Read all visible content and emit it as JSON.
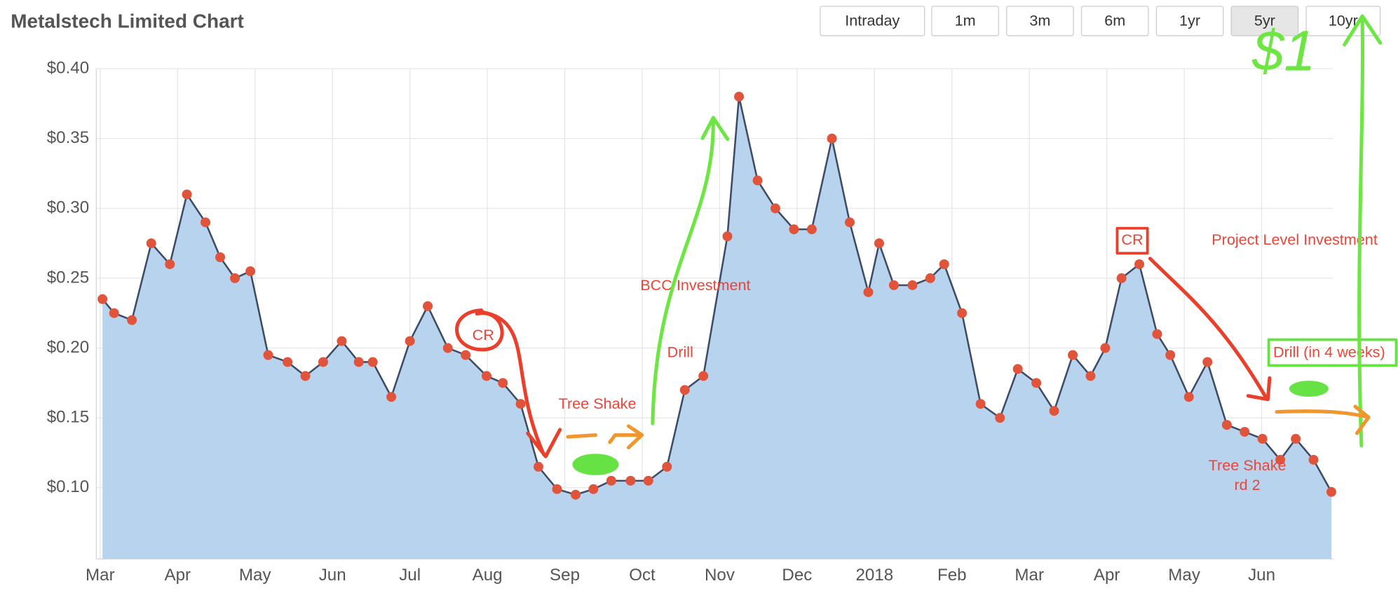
{
  "title": "Metalstech Limited Chart",
  "buttons": [
    {
      "label": "Intraday"
    },
    {
      "label": "1m"
    },
    {
      "label": "3m"
    },
    {
      "label": "6m"
    },
    {
      "label": "1yr"
    },
    {
      "label": "5yr",
      "active": true
    },
    {
      "label": "10yr"
    }
  ],
  "chart_data": {
    "type": "area",
    "x": [
      0.03,
      0.18,
      0.41,
      0.66,
      0.9,
      1.12,
      1.36,
      1.55,
      1.74,
      1.94,
      2.17,
      2.42,
      2.65,
      2.88,
      3.12,
      3.34,
      3.52,
      3.76,
      4.0,
      4.23,
      4.49,
      4.72,
      4.99,
      5.2,
      5.43,
      5.66,
      5.9,
      6.14,
      6.37,
      6.6,
      6.85,
      7.08,
      7.32,
      7.55,
      7.79,
      8.1,
      8.25,
      8.49,
      8.72,
      8.96,
      9.19,
      9.45,
      9.68,
      9.92,
      10.06,
      10.25,
      10.49,
      10.72,
      10.9,
      11.13,
      11.37,
      11.62,
      11.85,
      12.09,
      12.32,
      12.56,
      12.79,
      12.98,
      13.19,
      13.42,
      13.65,
      13.82,
      14.06,
      14.3,
      14.55,
      14.78,
      15.01,
      15.24,
      15.44,
      15.67,
      15.9
    ],
    "values": [
      0.235,
      0.225,
      0.22,
      0.275,
      0.26,
      0.31,
      0.29,
      0.265,
      0.25,
      0.255,
      0.195,
      0.19,
      0.18,
      0.19,
      0.205,
      0.19,
      0.19,
      0.165,
      0.205,
      0.23,
      0.2,
      0.195,
      0.18,
      0.175,
      0.16,
      0.115,
      0.099,
      0.095,
      0.099,
      0.105,
      0.105,
      0.105,
      0.115,
      0.17,
      0.18,
      0.28,
      0.38,
      0.32,
      0.3,
      0.285,
      0.285,
      0.35,
      0.29,
      0.24,
      0.275,
      0.245,
      0.245,
      0.25,
      0.26,
      0.225,
      0.16,
      0.15,
      0.185,
      0.175,
      0.155,
      0.195,
      0.18,
      0.2,
      0.25,
      0.26,
      0.21,
      0.195,
      0.165,
      0.19,
      0.145,
      0.14,
      0.135,
      0.12,
      0.135,
      0.12,
      0.097
    ],
    "color": "#b8d3ee",
    "line_color": "#3d4b63",
    "marker_color": "#e0543c",
    "xlim": [
      -0.05,
      15.92
    ],
    "xticks": [
      {
        "value": 0,
        "label": "Mar"
      },
      {
        "value": 1,
        "label": "Apr"
      },
      {
        "value": 2,
        "label": "May"
      },
      {
        "value": 3,
        "label": "Jun"
      },
      {
        "value": 4,
        "label": "Jul"
      },
      {
        "value": 5,
        "label": "Aug"
      },
      {
        "value": 6,
        "label": "Sep"
      },
      {
        "value": 7,
        "label": "Oct"
      },
      {
        "value": 8,
        "label": "Nov"
      },
      {
        "value": 9,
        "label": "Dec"
      },
      {
        "value": 10,
        "label": "2018"
      },
      {
        "value": 11,
        "label": "Feb"
      },
      {
        "value": 12,
        "label": "Mar"
      },
      {
        "value": 13,
        "label": "Apr"
      },
      {
        "value": 14,
        "label": "May"
      },
      {
        "value": 15,
        "label": "Jun"
      }
    ],
    "ylim": [
      0.049,
      0.4
    ],
    "yticks": [
      {
        "value": 0.1,
        "label": "$0.10"
      },
      {
        "value": 0.15,
        "label": "$0.15"
      },
      {
        "value": 0.2,
        "label": "$0.20"
      },
      {
        "value": 0.25,
        "label": "$0.25"
      },
      {
        "value": 0.3,
        "label": "$0.30"
      },
      {
        "value": 0.35,
        "label": "$0.35"
      },
      {
        "value": 0.4,
        "label": "$0.40"
      }
    ],
    "grid": true,
    "annotations": [
      "BCC Investment",
      "Drill",
      "Tree Shake",
      "CR",
      "CR",
      "Project Level Investment",
      "Drill (in 4 weeks)",
      "Tree Shake",
      "rd 2",
      "$1"
    ]
  }
}
